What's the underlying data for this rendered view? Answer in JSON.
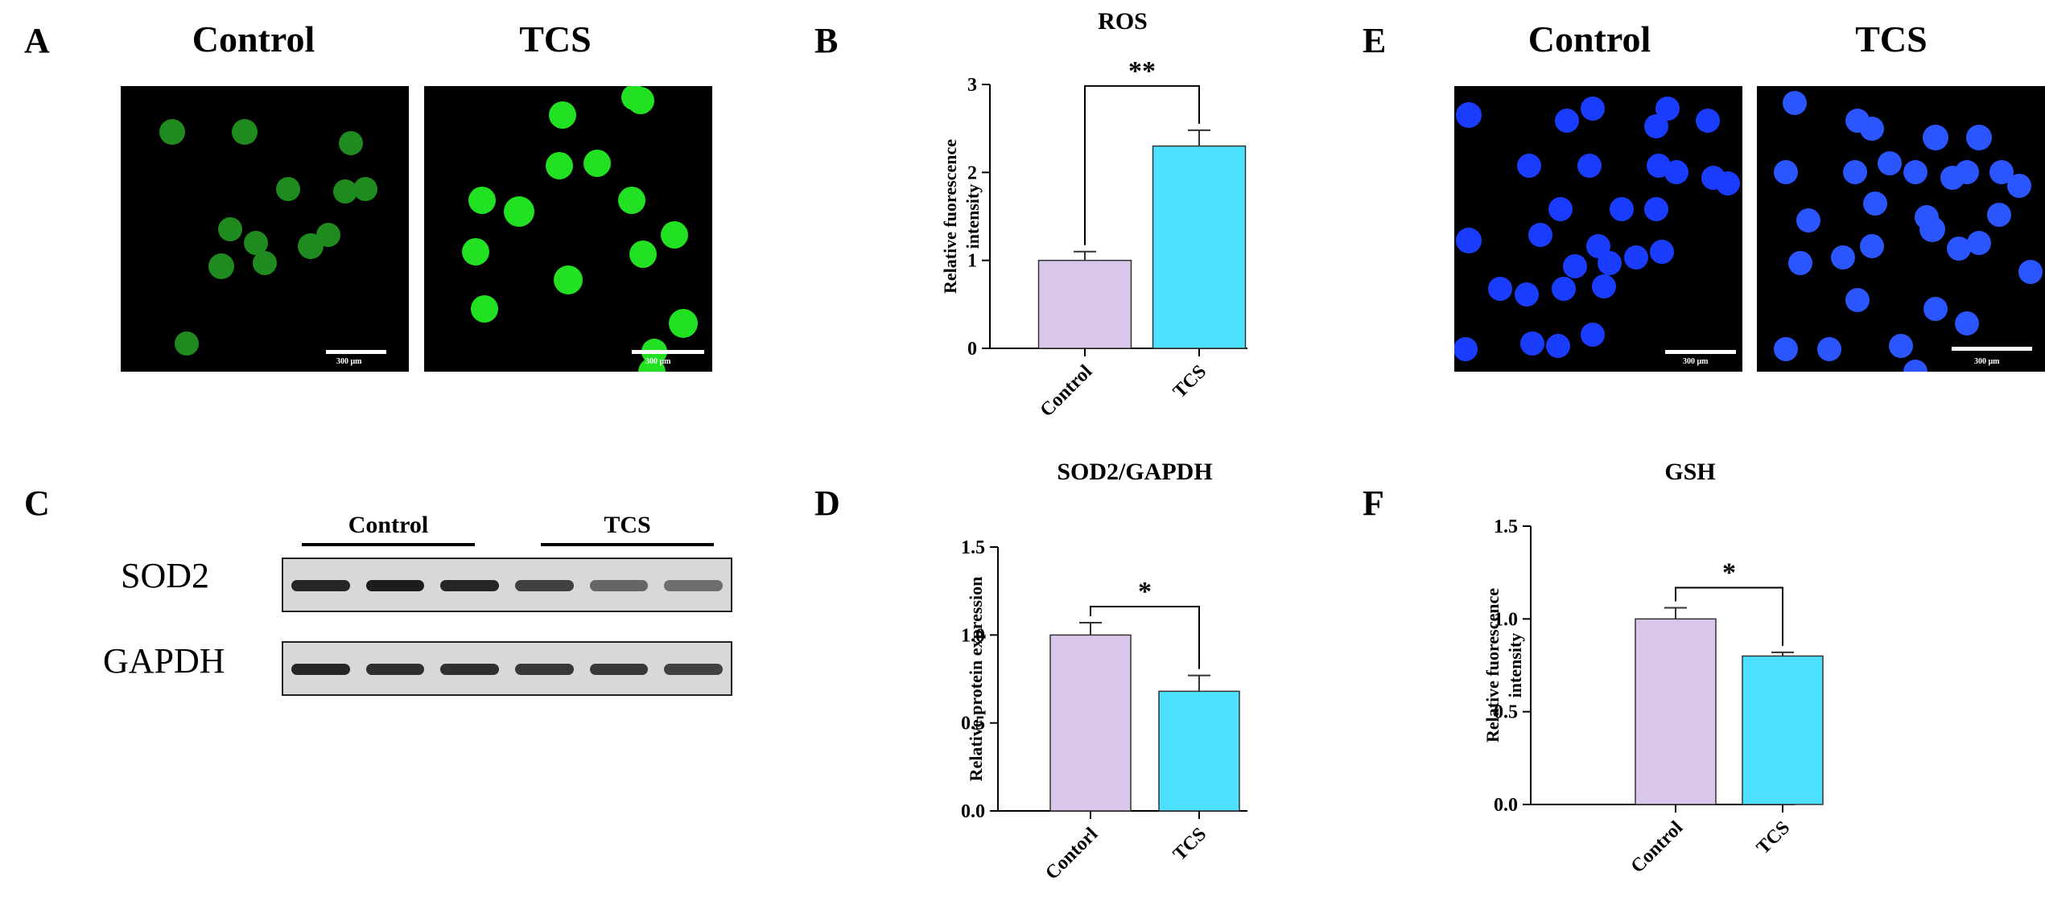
{
  "panels": {
    "A": {
      "letter": "A",
      "titles": [
        "Control",
        "TCS"
      ],
      "scale_label": "300 μm",
      "images": [
        {
          "name": "control",
          "color": "#1f8a1f",
          "cells": [
            [
              18,
              16,
              16
            ],
            [
              43,
              16,
              16
            ],
            [
              80,
              20,
              15
            ],
            [
              78,
              37,
              15
            ],
            [
              85,
              36,
              15
            ],
            [
              58,
              36,
              15
            ],
            [
              38,
              50,
              15
            ],
            [
              47,
              55,
              15
            ],
            [
              50,
              62,
              15
            ],
            [
              66,
              56,
              16
            ],
            [
              72,
              52,
              15
            ],
            [
              35,
              63,
              16
            ],
            [
              23,
              90,
              15
            ]
          ]
        },
        {
          "name": "tcs",
          "color": "#22e022",
          "cells": [
            [
              73,
              4,
              16
            ],
            [
              75,
              5,
              17
            ],
            [
              48,
              10,
              17
            ],
            [
              20,
              40,
              17
            ],
            [
              47,
              28,
              17
            ],
            [
              60,
              27,
              17
            ],
            [
              33,
              44,
              19
            ],
            [
              72,
              40,
              17
            ],
            [
              18,
              58,
              17
            ],
            [
              87,
              52,
              17
            ],
            [
              76,
              59,
              17
            ],
            [
              50,
              68,
              18
            ],
            [
              21,
              78,
              17
            ],
            [
              90,
              83,
              18
            ],
            [
              80,
              93,
              16
            ],
            [
              79,
              100,
              17
            ]
          ]
        }
      ]
    },
    "B": {
      "letter": "B"
    },
    "C": {
      "letter": "C",
      "groups": [
        "Control",
        "TCS"
      ],
      "rows": [
        {
          "label": "SOD2",
          "intensities": [
            0.9,
            0.95,
            0.9,
            0.75,
            0.55,
            0.5
          ]
        },
        {
          "label": "GAPDH",
          "intensities": [
            0.9,
            0.85,
            0.85,
            0.8,
            0.8,
            0.75
          ]
        }
      ]
    },
    "D": {
      "letter": "D"
    },
    "E": {
      "letter": "E",
      "titles": [
        "Control",
        "TCS"
      ],
      "scale_label": "300 μm",
      "images": [
        {
          "name": "control",
          "color": "#1a3cff",
          "cells": [
            [
              5,
              10,
              16
            ],
            [
              39,
              12,
              15
            ],
            [
              48,
              8,
              15
            ],
            [
              74,
              8,
              15
            ],
            [
              88,
              12,
              15
            ],
            [
              70,
              14,
              15
            ],
            [
              26,
              28,
              15
            ],
            [
              47,
              28,
              15
            ],
            [
              71,
              28,
              15
            ],
            [
              77,
              30,
              15
            ],
            [
              90,
              32,
              15
            ],
            [
              95,
              34,
              15
            ],
            [
              37,
              43,
              15
            ],
            [
              70,
              43,
              15
            ],
            [
              58,
              43,
              15
            ],
            [
              5,
              54,
              16
            ],
            [
              30,
              52,
              15
            ],
            [
              50,
              56,
              15
            ],
            [
              63,
              60,
              15
            ],
            [
              72,
              58,
              15
            ],
            [
              42,
              63,
              15
            ],
            [
              52,
              70,
              15
            ],
            [
              16,
              71,
              15
            ],
            [
              38,
              71,
              15
            ],
            [
              25,
              73,
              15
            ],
            [
              54,
              62,
              15
            ],
            [
              27,
              90,
              15
            ],
            [
              36,
              91,
              15
            ],
            [
              4,
              92,
              15
            ],
            [
              48,
              87,
              15
            ]
          ]
        },
        {
          "name": "tcs",
          "color": "#2a55ff",
          "cells": [
            [
              13,
              6,
              15
            ],
            [
              35,
              12,
              15
            ],
            [
              40,
              15,
              15
            ],
            [
              62,
              18,
              16
            ],
            [
              77,
              18,
              16
            ],
            [
              10,
              30,
              15
            ],
            [
              34,
              30,
              15
            ],
            [
              46,
              27,
              15
            ],
            [
              55,
              30,
              15
            ],
            [
              68,
              32,
              15
            ],
            [
              73,
              30,
              15
            ],
            [
              85,
              30,
              15
            ],
            [
              91,
              35,
              15
            ],
            [
              18,
              47,
              15
            ],
            [
              41,
              41,
              15
            ],
            [
              59,
              46,
              15
            ],
            [
              61,
              50,
              16
            ],
            [
              77,
              55,
              15
            ],
            [
              84,
              45,
              15
            ],
            [
              40,
              56,
              15
            ],
            [
              70,
              57,
              15
            ],
            [
              15,
              62,
              15
            ],
            [
              30,
              60,
              15
            ],
            [
              95,
              65,
              15
            ],
            [
              35,
              75,
              15
            ],
            [
              62,
              78,
              15
            ],
            [
              73,
              83,
              15
            ],
            [
              25,
              92,
              15
            ],
            [
              50,
              91,
              15
            ],
            [
              10,
              92,
              15
            ],
            [
              55,
              100,
              15
            ]
          ]
        }
      ]
    },
    "F": {
      "letter": "F"
    }
  },
  "chart_data": [
    {
      "panel": "B",
      "type": "bar",
      "title": "ROS",
      "ylabel": "Relative fuorescence intensity",
      "ylabel_lines": [
        "Relative fuorescence",
        "intensity"
      ],
      "categories": [
        "Control",
        "TCS"
      ],
      "values": [
        1.0,
        2.3
      ],
      "errors": [
        0.1,
        0.18
      ],
      "colors": [
        "#d9c6ea",
        "#4de0ff"
      ],
      "ylim": [
        0,
        3
      ],
      "yticks": [
        "0",
        "1",
        "2",
        "3"
      ],
      "significance": "**"
    },
    {
      "panel": "D",
      "type": "bar",
      "title": "SOD2/GAPDH",
      "ylabel": "Relative protein expression",
      "ylabel_lines": [
        "Relative protein expression"
      ],
      "categories": [
        "Contorl",
        "TCS"
      ],
      "values": [
        1.0,
        0.68
      ],
      "errors": [
        0.07,
        0.09
      ],
      "colors": [
        "#d9c6ea",
        "#4de0ff"
      ],
      "ylim": [
        0,
        1.5
      ],
      "yticks": [
        "0.0",
        "0.5",
        "1.0",
        "1.5"
      ],
      "significance": "*"
    },
    {
      "panel": "F",
      "type": "bar",
      "title": "GSH",
      "ylabel": "Relative fuorescence intensity",
      "ylabel_lines": [
        "Relative fuorescence",
        "intensity"
      ],
      "categories": [
        "Control",
        "TCS"
      ],
      "values": [
        1.0,
        0.8
      ],
      "errors": [
        0.06,
        0.02
      ],
      "colors": [
        "#d9c6ea",
        "#4de0ff"
      ],
      "ylim": [
        0,
        1.5
      ],
      "yticks": [
        "0.0",
        "0.5",
        "1.0",
        "1.5"
      ],
      "significance": "*"
    }
  ]
}
